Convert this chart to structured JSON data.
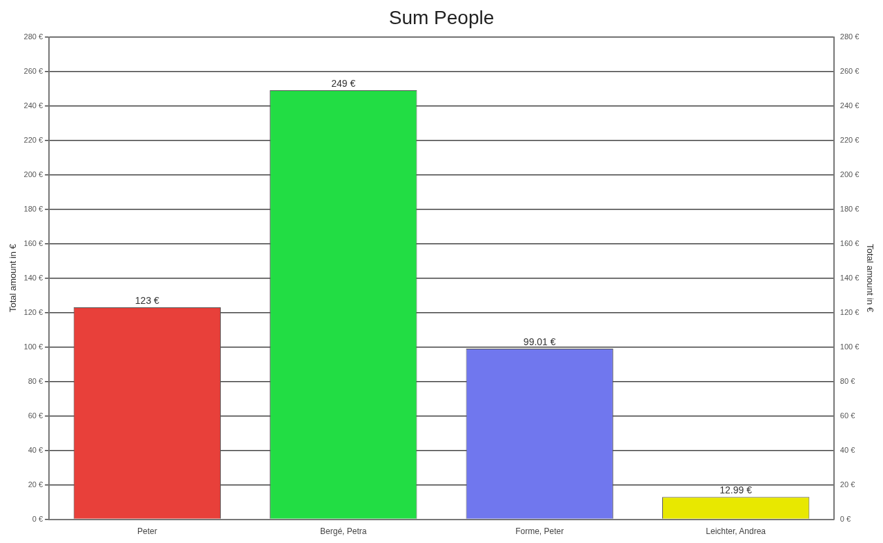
{
  "chart_data": {
    "type": "bar",
    "title": "Sum People",
    "ylabel": "Total amount in €",
    "y2label": "Total amount in €",
    "categories": [
      "Peter",
      "Bergé, Petra",
      "Forme, Peter",
      "Leichter, Andrea"
    ],
    "values": [
      123,
      249,
      99.01,
      12.99
    ],
    "colors": [
      "#e8403a",
      "#22dd44",
      "#7077ee",
      "#e8e800"
    ],
    "value_labels": [
      "123 €",
      "249 €",
      "99.01 €",
      "12.99 €"
    ],
    "ylim": [
      0,
      280
    ],
    "yticks": [
      {
        "value": 0,
        "label": "0 €"
      },
      {
        "value": 20,
        "label": "20 €"
      },
      {
        "value": 40,
        "label": "40 €"
      },
      {
        "value": 60,
        "label": "60 €"
      },
      {
        "value": 80,
        "label": "80 €"
      },
      {
        "value": 100,
        "label": "100 €"
      },
      {
        "value": 120,
        "label": "120 €"
      },
      {
        "value": 140,
        "label": "140 €"
      },
      {
        "value": 160,
        "label": "160 €"
      },
      {
        "value": 180,
        "label": "180 €"
      },
      {
        "value": 200,
        "label": "200 €"
      },
      {
        "value": 220,
        "label": "220 €"
      },
      {
        "value": 240,
        "label": "240 €"
      },
      {
        "value": 260,
        "label": "260 €"
      },
      {
        "value": 280,
        "label": "280 €"
      }
    ],
    "y2lim": [
      0,
      280
    ],
    "y2ticks": [
      {
        "value": 0,
        "label": "0 €"
      },
      {
        "value": 20,
        "label": "20 €"
      },
      {
        "value": 40,
        "label": "40 €"
      },
      {
        "value": 60,
        "label": "60 €"
      },
      {
        "value": 80,
        "label": "80 €"
      },
      {
        "value": 100,
        "label": "100 €"
      },
      {
        "value": 120,
        "label": "120 €"
      },
      {
        "value": 140,
        "label": "140 €"
      },
      {
        "value": 160,
        "label": "160 €"
      },
      {
        "value": 180,
        "label": "180 €"
      },
      {
        "value": 200,
        "label": "200 €"
      },
      {
        "value": 220,
        "label": "220 €"
      },
      {
        "value": 240,
        "label": "240 €"
      },
      {
        "value": 260,
        "label": "260 €"
      },
      {
        "value": 280,
        "label": "280 €"
      }
    ],
    "grid": "y",
    "legend": false
  }
}
